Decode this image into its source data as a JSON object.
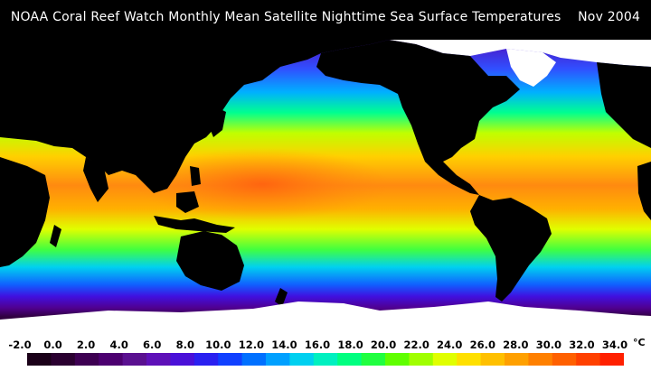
{
  "title": "NOAA Coral Reef Watch Monthly Mean Satellite Nighttime Sea Surface Temperatures    Nov 2004",
  "legend": {
    "unit": "°C",
    "ticks": [
      "-2.0",
      "0.0",
      "2.0",
      "4.0",
      "6.0",
      "8.0",
      "10.0",
      "12.0",
      "14.0",
      "16.0",
      "18.0",
      "20.0",
      "22.0",
      "24.0",
      "26.0",
      "28.0",
      "30.0",
      "32.0",
      "34.0"
    ],
    "colors": [
      "#1a0018",
      "#2a0030",
      "#3d0052",
      "#4c0070",
      "#5a1090",
      "#5e10b8",
      "#4a10d8",
      "#2a20f0",
      "#1040ff",
      "#0070ff",
      "#00a0ff",
      "#00d0f0",
      "#00f0c0",
      "#00ff80",
      "#20ff40",
      "#60ff00",
      "#a0ff00",
      "#e0ff00",
      "#ffe000",
      "#ffc000",
      "#ffa000",
      "#ff8000",
      "#ff6000",
      "#ff4000",
      "#ff2000"
    ]
  },
  "map": {
    "land_color": "#000000",
    "ice_color": "#ffffff",
    "cold_color": "#5010c0",
    "warm_color": "#ff7010"
  }
}
